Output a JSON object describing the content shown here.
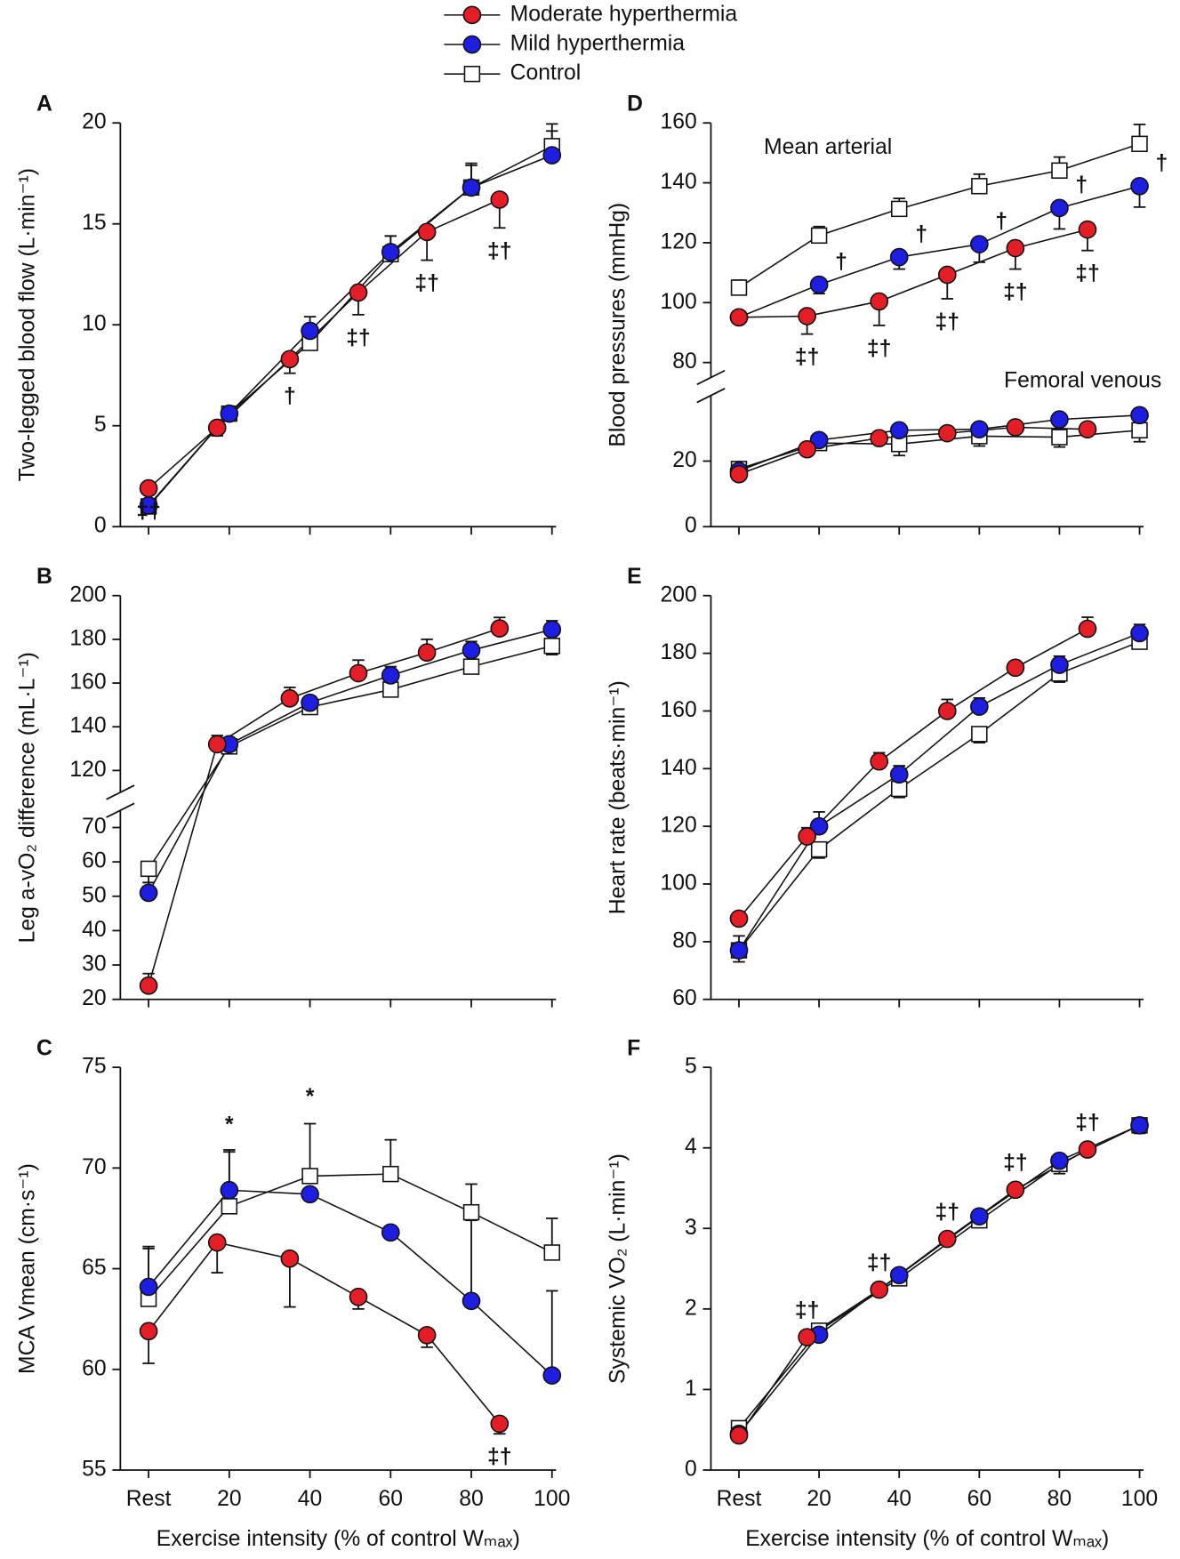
{
  "legend": [
    {
      "name": "Moderate hyperthermia",
      "color": "#e41e26",
      "marker": "circle"
    },
    {
      "name": "Mild hyperthermia",
      "color": "#1d1ee0",
      "marker": "circle"
    },
    {
      "name": "Control",
      "color": "#ffffff",
      "marker": "square"
    }
  ],
  "chart_data": [
    {
      "type": "line",
      "label": "A",
      "ylabel": "Two-legged blood flow (L·min⁻¹)",
      "xlim": [
        -7,
        101
      ],
      "xticks": [
        0,
        20,
        40,
        60,
        80,
        100
      ],
      "ylim": [
        0,
        20
      ],
      "yticks": [
        0,
        5,
        10,
        15,
        20
      ],
      "series": [
        {
          "color": "#e41e26",
          "marker": "circle",
          "x": [
            0,
            17,
            35,
            52,
            69,
            87
          ],
          "values": [
            1.9,
            4.9,
            8.3,
            11.6,
            14.6,
            16.2
          ],
          "errors": [
            null,
            0.4,
            0.7,
            1.1,
            1.4,
            1.4
          ],
          "error_direction": "down",
          "point_labels": [
            "‡†",
            null,
            "†",
            "‡†",
            "‡†",
            "‡†"
          ],
          "label_position": "below"
        },
        {
          "color": "#1d1ee0",
          "marker": "circle",
          "x": [
            0,
            20,
            40,
            60,
            80,
            100
          ],
          "values": [
            1.05,
            5.6,
            9.7,
            13.6,
            16.8,
            18.4
          ],
          "errors": [
            null,
            0.3,
            0.7,
            0.8,
            1.1,
            1.2
          ],
          "error_direction": "up"
        },
        {
          "color": "#ffffff",
          "marker": "square",
          "x": [
            0,
            20,
            40,
            60,
            80,
            100
          ],
          "values": [
            1.0,
            5.6,
            9.1,
            13.5,
            16.8,
            18.85
          ],
          "errors": [
            null,
            0.3,
            0.6,
            0.9,
            1.2,
            1.1
          ],
          "error_direction": "up"
        }
      ]
    },
    {
      "type": "line",
      "label": "B",
      "ylabel": "Leg a-vO₂ difference (mL·L⁻¹)",
      "xlim": [
        -7,
        101
      ],
      "xticks": [
        0,
        20,
        40,
        60,
        80,
        100
      ],
      "ylim": [
        20,
        200
      ],
      "y_break": [
        75,
        110
      ],
      "yticks": [
        20,
        30,
        40,
        50,
        60,
        70,
        120,
        140,
        160,
        180,
        200
      ],
      "series": [
        {
          "color": "#e41e26",
          "marker": "circle",
          "x": [
            0,
            17,
            35,
            52,
            69,
            87
          ],
          "values": [
            24,
            132,
            153,
            164.5,
            174,
            185
          ],
          "errors": [
            3.5,
            4,
            5,
            6,
            6,
            5
          ],
          "error_direction": "up"
        },
        {
          "color": "#1d1ee0",
          "marker": "circle",
          "x": [
            0,
            20,
            40,
            60,
            80,
            100
          ],
          "values": [
            51,
            132,
            151,
            163.5,
            175,
            184.5
          ],
          "errors": [
            3,
            3,
            3,
            4,
            4,
            4
          ],
          "error_direction": "up"
        },
        {
          "color": "#ffffff",
          "marker": "square",
          "x": [
            0,
            20,
            40,
            60,
            80,
            100
          ],
          "values": [
            58,
            131,
            149,
            157,
            167.5,
            177
          ],
          "errors": [
            4,
            3,
            3,
            3,
            3,
            4
          ],
          "error_direction": "down"
        }
      ]
    },
    {
      "type": "line",
      "label": "C",
      "ylabel": "MCA Vmean (cm·s⁻¹)",
      "xlabel": "Exercise intensity (% of control Wₘₐₓ)",
      "xlim": [
        -7,
        101
      ],
      "xticks": [
        {
          "value": 0,
          "label": "Rest"
        },
        20,
        40,
        60,
        80,
        100
      ],
      "ylim": [
        55,
        75
      ],
      "yticks": [
        55,
        60,
        65,
        70,
        75
      ],
      "series": [
        {
          "color": "#e41e26",
          "marker": "circle",
          "x": [
            0,
            17,
            35,
            52,
            69,
            87
          ],
          "values": [
            61.9,
            66.3,
            65.5,
            63.6,
            61.7,
            57.3
          ],
          "errors": [
            1.6,
            1.5,
            2.4,
            0.6,
            0.6,
            0.5
          ],
          "error_direction": "down",
          "point_labels": [
            null,
            null,
            null,
            null,
            null,
            "‡†"
          ],
          "label_position": "below"
        },
        {
          "color": "#1d1ee0",
          "marker": "circle",
          "x": [
            0,
            20,
            40,
            60,
            80,
            100
          ],
          "values": [
            64.1,
            68.9,
            68.7,
            66.8,
            63.4,
            59.7
          ],
          "errors": [
            1.9,
            2.0,
            null,
            null,
            4.0,
            4.2
          ],
          "error_direction": "up"
        },
        {
          "color": "#ffffff",
          "marker": "square",
          "x": [
            0,
            20,
            40,
            60,
            80,
            100
          ],
          "values": [
            63.5,
            68.1,
            69.6,
            69.7,
            67.8,
            65.8
          ],
          "errors": [
            2.6,
            2.7,
            2.6,
            1.7,
            1.4,
            1.7
          ],
          "error_direction": "up",
          "point_labels": [
            null,
            "*",
            "*",
            null,
            null,
            null
          ],
          "label_position": "above"
        }
      ]
    },
    {
      "type": "line",
      "label": "D",
      "ylabel": "Blood pressures (mmHg)",
      "texts": [
        "Mean arterial",
        "Femoral venous"
      ],
      "xlim": [
        -7,
        101
      ],
      "xticks": [
        0,
        20,
        40,
        60,
        80,
        100
      ],
      "ylim": [
        0,
        160
      ],
      "y_break": [
        40,
        75
      ],
      "yticks": [
        0,
        20,
        80,
        100,
        120,
        140,
        160
      ],
      "series": [
        {
          "color": "#e41e26",
          "marker": "circle",
          "x": [
            0,
            17,
            35,
            52,
            69,
            87
          ],
          "values": [
            95.1,
            95.5,
            100.4,
            109.3,
            118.2,
            124.4
          ],
          "errors": [
            2,
            6,
            8,
            8,
            7,
            7
          ],
          "error_direction": "down",
          "point_labels": [
            null,
            "‡†",
            "‡†",
            "‡†",
            "‡†",
            "‡†"
          ],
          "label_position": "below"
        },
        {
          "color": "#1d1ee0",
          "marker": "circle",
          "x": [
            0,
            20,
            40,
            60,
            80,
            100
          ],
          "values": [
            95.1,
            106,
            115.2,
            119.5,
            131.6,
            138.9
          ],
          "errors": [
            2,
            3,
            4,
            6,
            7,
            7
          ],
          "error_direction": "down",
          "point_labels": [
            null,
            "†",
            "†",
            "†",
            "†",
            "†"
          ],
          "label_position": "right"
        },
        {
          "color": "#ffffff",
          "marker": "square",
          "x": [
            0,
            20,
            40,
            60,
            80,
            100
          ],
          "values": [
            105,
            122.4,
            131.3,
            138.9,
            144.1,
            153
          ],
          "errors": [
            2.5,
            3,
            3.5,
            4,
            4.5,
            6.5
          ],
          "error_direction": "up"
        },
        {
          "color": "#e41e26",
          "marker": "circle",
          "x": [
            0,
            17,
            35,
            52,
            69,
            87
          ],
          "values": [
            16,
            23.6,
            27,
            28.5,
            30.3,
            29.7
          ],
          "errors": [
            1.5,
            null,
            null,
            null,
            null,
            null
          ],
          "error_direction": "down"
        },
        {
          "color": "#1d1ee0",
          "marker": "circle",
          "x": [
            0,
            20,
            40,
            60,
            80,
            100
          ],
          "values": [
            17,
            26.4,
            29.4,
            29.7,
            32.7,
            34
          ]
        },
        {
          "color": "#ffffff",
          "marker": "square",
          "x": [
            0,
            20,
            40,
            60,
            80,
            100
          ],
          "values": [
            17.6,
            25.5,
            25.2,
            27.6,
            27.3,
            29.4
          ],
          "errors": [
            null,
            2,
            3.5,
            3,
            3,
            3.5
          ],
          "error_direction": "down"
        }
      ]
    },
    {
      "type": "line",
      "label": "E",
      "ylabel": "Heart rate (beats·min⁻¹)",
      "xlim": [
        -7,
        101
      ],
      "xticks": [
        0,
        20,
        40,
        60,
        80,
        100
      ],
      "ylim": [
        60,
        200
      ],
      "yticks": [
        60,
        80,
        100,
        120,
        140,
        160,
        180,
        200
      ],
      "series": [
        {
          "color": "#e41e26",
          "marker": "circle",
          "x": [
            0,
            17,
            35,
            52,
            69,
            87
          ],
          "values": [
            88,
            116.5,
            142.5,
            160,
            175,
            188.5
          ],
          "errors": [
            null,
            3,
            3,
            4,
            2,
            4
          ],
          "error_direction": "up"
        },
        {
          "color": "#1d1ee0",
          "marker": "circle",
          "x": [
            0,
            20,
            40,
            60,
            80,
            100
          ],
          "values": [
            77,
            120,
            138,
            161.5,
            176,
            187
          ],
          "errors": [
            5,
            5,
            3,
            3,
            3,
            3
          ],
          "error_direction": "up"
        },
        {
          "color": "#ffffff",
          "marker": "square",
          "x": [
            0,
            20,
            40,
            60,
            80,
            100
          ],
          "values": [
            77,
            112,
            133,
            152,
            173,
            184
          ],
          "errors": [
            4,
            3,
            3,
            3,
            3,
            2
          ],
          "error_direction": "down"
        }
      ]
    },
    {
      "type": "line",
      "label": "F",
      "ylabel": "Systemic VO₂ (L·min⁻¹)",
      "xlabel": "Exercise intensity (% of control Wₘₐₓ)",
      "xlim": [
        -7,
        101
      ],
      "xticks": [
        {
          "value": 0,
          "label": "Rest"
        },
        20,
        40,
        60,
        80,
        100
      ],
      "ylim": [
        0,
        5
      ],
      "yticks": [
        0,
        1,
        2,
        3,
        4,
        5
      ],
      "series": [
        {
          "color": "#e41e26",
          "marker": "circle",
          "x": [
            0,
            17,
            35,
            52,
            69,
            87
          ],
          "values": [
            0.43,
            1.65,
            2.24,
            2.87,
            3.48,
            3.98
          ],
          "point_labels": [
            null,
            "‡†",
            "‡†",
            "‡†",
            "‡†",
            "‡†"
          ],
          "label_position": "above"
        },
        {
          "color": "#1d1ee0",
          "marker": "circle",
          "x": [
            0,
            20,
            40,
            60,
            80,
            100
          ],
          "values": [
            0.45,
            1.68,
            2.42,
            3.15,
            3.84,
            4.28
          ]
        },
        {
          "color": "#ffffff",
          "marker": "square",
          "x": [
            0,
            20,
            40,
            60,
            80,
            100
          ],
          "values": [
            0.52,
            1.73,
            2.38,
            3.1,
            3.8,
            4.28
          ],
          "errors": [
            null,
            null,
            null,
            null,
            0.12,
            0.1
          ],
          "error_direction": "down"
        }
      ]
    }
  ]
}
